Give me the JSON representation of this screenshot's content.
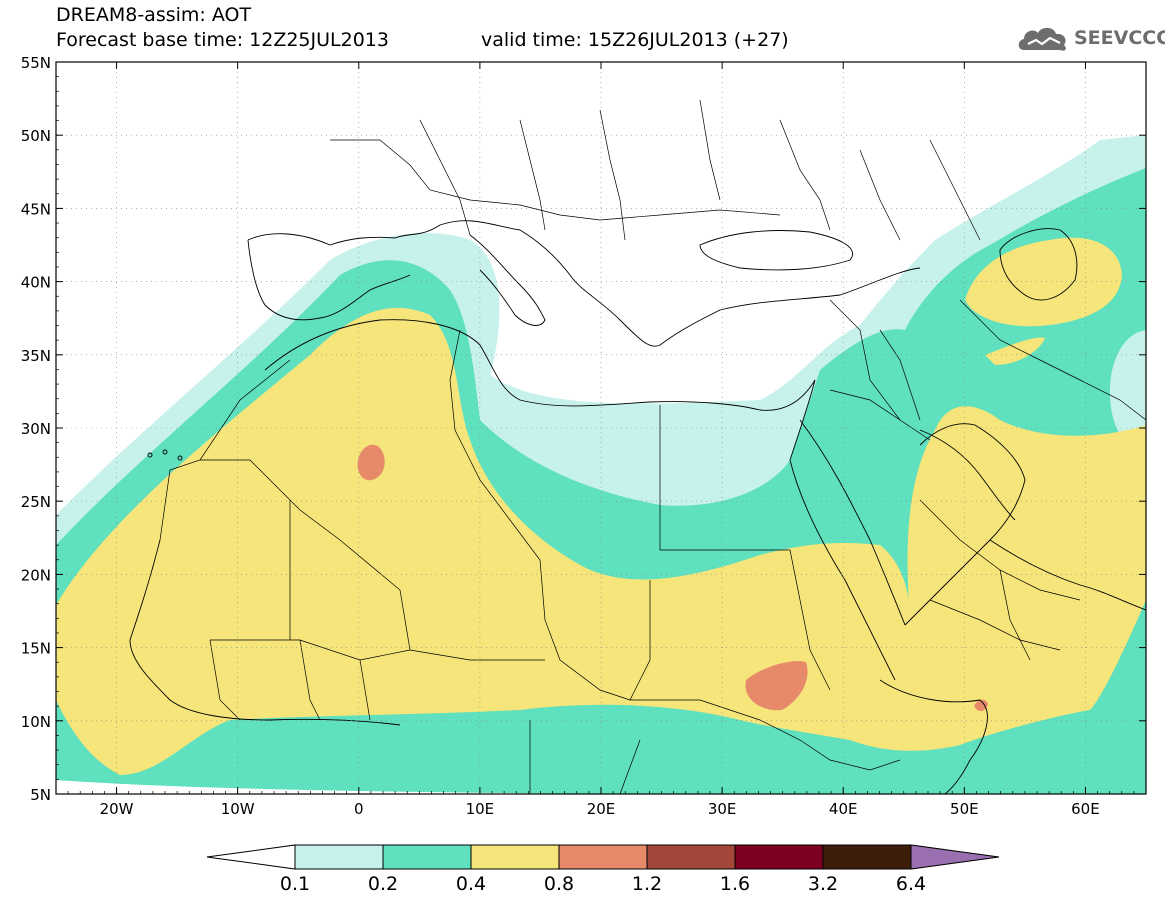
{
  "header": {
    "title_line1": "DREAM8-assim: AOT",
    "title_line2": "Forecast base time: 12Z25JUL2013",
    "valid_time": "valid time: 15Z26JUL2013 (+27)",
    "logo_text": "SEEVCCC"
  },
  "map": {
    "lon_range": [
      -25,
      65
    ],
    "lat_range": [
      5,
      55
    ],
    "lat_ticks": [
      "5N",
      "10N",
      "15N",
      "20N",
      "25N",
      "30N",
      "35N",
      "40N",
      "45N",
      "50N",
      "55N"
    ],
    "lon_ticks": [
      "20W",
      "10W",
      "0",
      "10E",
      "20E",
      "30E",
      "40E",
      "50E",
      "60E"
    ],
    "fill_colors": {
      "none": "#ffffff",
      "c0.1": "#c7f2ec",
      "c0.2": "#5fe0be",
      "c0.4": "#f5e57a",
      "c0.8": "#e78a6a",
      "c1.2": "#a4473b",
      "c1.6": "#7d0020",
      "c3.2": "#3e1e0b",
      "c6.4": "#9a6fb0"
    }
  },
  "legend": {
    "labels": [
      "0.1",
      "0.2",
      "0.4",
      "0.8",
      "1.2",
      "1.6",
      "3.2",
      "6.4"
    ]
  }
}
